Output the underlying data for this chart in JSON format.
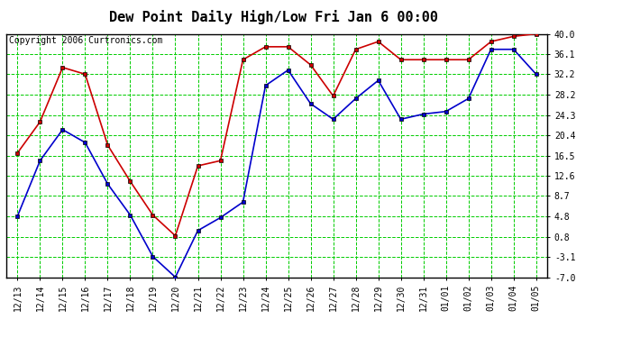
{
  "title": "Dew Point Daily High/Low Fri Jan 6 00:00",
  "copyright": "Copyright 2006 Curtronics.com",
  "labels": [
    "12/13",
    "12/14",
    "12/15",
    "12/16",
    "12/17",
    "12/18",
    "12/19",
    "12/20",
    "12/21",
    "12/22",
    "12/23",
    "12/24",
    "12/25",
    "12/26",
    "12/27",
    "12/28",
    "12/29",
    "12/30",
    "12/31",
    "01/01",
    "01/02",
    "01/03",
    "01/04",
    "01/05"
  ],
  "high_values": [
    17.0,
    23.0,
    33.5,
    32.2,
    18.5,
    11.5,
    5.0,
    1.0,
    14.5,
    15.5,
    35.0,
    37.5,
    37.5,
    34.0,
    28.0,
    37.0,
    38.5,
    35.0,
    35.0,
    35.0,
    35.0,
    38.5,
    39.5,
    40.0
  ],
  "low_values": [
    4.8,
    15.5,
    21.5,
    19.0,
    11.0,
    5.0,
    -3.0,
    -7.0,
    2.0,
    4.5,
    7.5,
    30.0,
    33.0,
    26.5,
    23.5,
    27.5,
    31.0,
    23.5,
    24.5,
    25.0,
    27.5,
    37.0,
    37.0,
    32.2
  ],
  "yticks": [
    -7.0,
    -3.1,
    0.8,
    4.8,
    8.7,
    12.6,
    16.5,
    20.4,
    24.3,
    28.2,
    32.2,
    36.1,
    40.0
  ],
  "ylim": [
    -7.0,
    40.0
  ],
  "high_color": "#cc0000",
  "low_color": "#0000cc",
  "marker_color": "#000000",
  "grid_color": "#00cc00",
  "bg_color": "#ffffff",
  "title_fontsize": 11,
  "tick_fontsize": 7,
  "copyright_fontsize": 7
}
